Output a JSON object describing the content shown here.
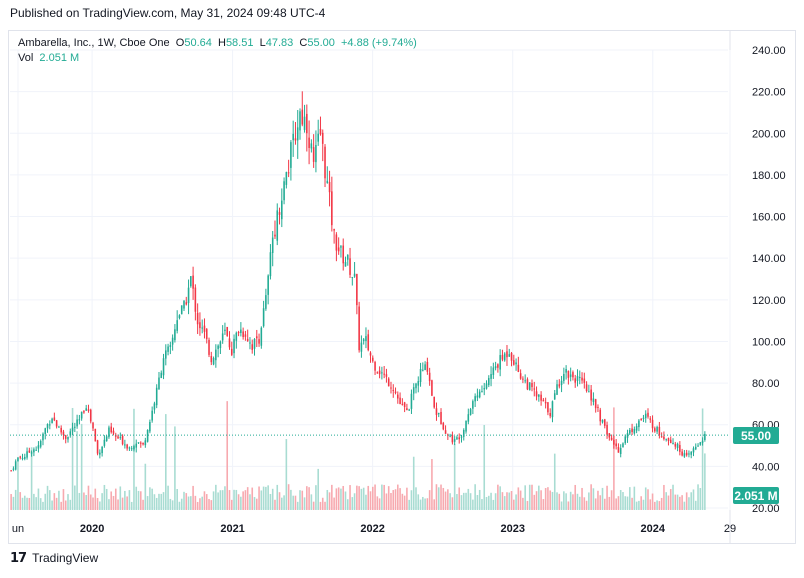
{
  "header": {
    "published": "Published on TradingView.com, May 31, 2024 09:48 UTC-4"
  },
  "legend": {
    "symbol": "Ambarella, Inc., 1W, Cboe One",
    "o_label": "O",
    "o_value": "50.64",
    "h_label": "H",
    "h_value": "58.51",
    "l_label": "L",
    "l_value": "47.83",
    "c_label": "C",
    "c_value": "55.00",
    "change": "+4.88 (+9.74%)",
    "vol_label": "Vol",
    "vol_value": "2.051 M"
  },
  "badges": {
    "price": "55.00",
    "volume": "2.051 M"
  },
  "footer": {
    "brand": "TradingView"
  },
  "colors": {
    "up": "#22ab94",
    "down": "#f23645",
    "vol_up": "#a8dcd2",
    "vol_down": "#f7a9af",
    "grid": "#f0f3fa"
  },
  "chart_data": {
    "type": "candlestick",
    "y_ticks": [
      "240.00",
      "220.00",
      "200.00",
      "180.00",
      "160.00",
      "140.00",
      "120.00",
      "100.00",
      "80.00",
      "60.00",
      "40.00",
      "20.00"
    ],
    "ylim": [
      20,
      240
    ],
    "x_ticks": [
      "un",
      "2020",
      "2021",
      "2022",
      "2023",
      "2024",
      "29"
    ],
    "x_tick_dates": [
      "2019-06",
      "2020-01",
      "2021-01",
      "2022-01",
      "2023-01",
      "2024-01",
      "2024-06"
    ],
    "last_price": 55.0,
    "price_path_weekly_close": [
      [
        0,
        38
      ],
      [
        3,
        44
      ],
      [
        6,
        45
      ],
      [
        9,
        48
      ],
      [
        12,
        49
      ],
      [
        15,
        58
      ],
      [
        18,
        64
      ],
      [
        21,
        58
      ],
      [
        24,
        54
      ],
      [
        27,
        58
      ],
      [
        30,
        62
      ],
      [
        33,
        70
      ],
      [
        36,
        58
      ],
      [
        38,
        46
      ],
      [
        40,
        50
      ],
      [
        43,
        57
      ],
      [
        46,
        54
      ],
      [
        49,
        52
      ],
      [
        52,
        49
      ],
      [
        55,
        52
      ],
      [
        58,
        50
      ],
      [
        61,
        62
      ],
      [
        64,
        76
      ],
      [
        67,
        93
      ],
      [
        70,
        96
      ],
      [
        73,
        112
      ],
      [
        76,
        116
      ],
      [
        79,
        130
      ],
      [
        82,
        110
      ],
      [
        85,
        103
      ],
      [
        88,
        92
      ],
      [
        91,
        98
      ],
      [
        94,
        104
      ],
      [
        97,
        96
      ],
      [
        100,
        106
      ],
      [
        103,
        104
      ],
      [
        106,
        98
      ],
      [
        109,
        102
      ],
      [
        112,
        120
      ],
      [
        115,
        150
      ],
      [
        118,
        165
      ],
      [
        121,
        180
      ],
      [
        124,
        195
      ],
      [
        127,
        210
      ],
      [
        130,
        205
      ],
      [
        133,
        185
      ],
      [
        136,
        200
      ],
      [
        139,
        175
      ],
      [
        142,
        150
      ],
      [
        145,
        142
      ],
      [
        148,
        138
      ],
      [
        151,
        130
      ],
      [
        153,
        98
      ],
      [
        156,
        100
      ],
      [
        159,
        90
      ],
      [
        162,
        86
      ],
      [
        165,
        82
      ],
      [
        168,
        78
      ],
      [
        171,
        70
      ],
      [
        174,
        66
      ],
      [
        177,
        76
      ],
      [
        180,
        85
      ],
      [
        183,
        88
      ],
      [
        186,
        68
      ],
      [
        189,
        62
      ],
      [
        192,
        55
      ],
      [
        195,
        52
      ],
      [
        198,
        56
      ],
      [
        201,
        66
      ],
      [
        204,
        74
      ],
      [
        207,
        76
      ],
      [
        210,
        82
      ],
      [
        213,
        88
      ],
      [
        216,
        92
      ],
      [
        219,
        96
      ],
      [
        222,
        88
      ],
      [
        225,
        82
      ],
      [
        228,
        78
      ],
      [
        231,
        74
      ],
      [
        234,
        70
      ],
      [
        237,
        66
      ],
      [
        240,
        78
      ],
      [
        243,
        86
      ],
      [
        246,
        84
      ],
      [
        249,
        82
      ],
      [
        252,
        78
      ],
      [
        255,
        74
      ],
      [
        258,
        66
      ],
      [
        261,
        58
      ],
      [
        264,
        52
      ],
      [
        267,
        48
      ],
      [
        270,
        54
      ],
      [
        273,
        58
      ],
      [
        276,
        62
      ],
      [
        279,
        64
      ],
      [
        282,
        60
      ],
      [
        285,
        56
      ],
      [
        288,
        54
      ],
      [
        291,
        52
      ],
      [
        294,
        48
      ],
      [
        297,
        44
      ],
      [
        300,
        48
      ],
      [
        303,
        52
      ],
      [
        305,
        55
      ]
    ]
  }
}
